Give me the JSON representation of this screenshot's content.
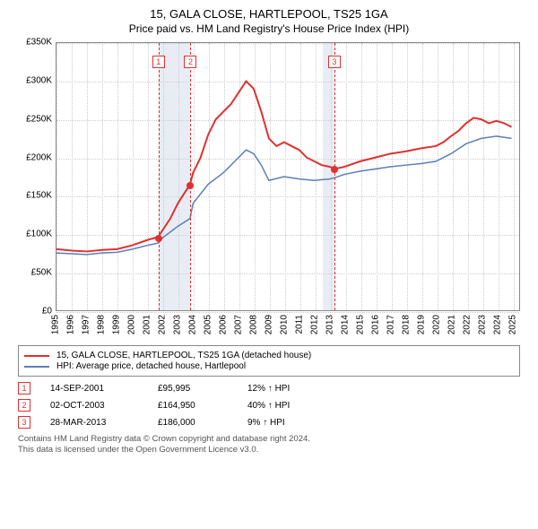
{
  "title": "15, GALA CLOSE, HARTLEPOOL, TS25 1GA",
  "subtitle": "Price paid vs. HM Land Registry's House Price Index (HPI)",
  "chart": {
    "type": "line",
    "ylim": [
      0,
      350000
    ],
    "ytick_step": 50000,
    "yticks": [
      "£0",
      "£50K",
      "£100K",
      "£150K",
      "£200K",
      "£250K",
      "£300K",
      "£350K"
    ],
    "xlim": [
      1995,
      2025.5
    ],
    "xticks": [
      1995,
      1996,
      1997,
      1998,
      1999,
      2000,
      2001,
      2002,
      2003,
      2004,
      2005,
      2006,
      2007,
      2008,
      2009,
      2010,
      2011,
      2012,
      2013,
      2014,
      2015,
      2016,
      2017,
      2018,
      2019,
      2020,
      2021,
      2022,
      2023,
      2024,
      2025
    ],
    "grid_color": "#cccccc",
    "background_color": "#ffffff",
    "shaded_ranges": [
      {
        "from": 2001.7,
        "to": 2003.8,
        "color": "#e8edf5"
      },
      {
        "from": 2012.5,
        "to": 2013.25,
        "color": "#e8edf5"
      }
    ],
    "events": [
      {
        "num": "1",
        "x": 2001.7
      },
      {
        "num": "2",
        "x": 2003.8
      },
      {
        "num": "3",
        "x": 2013.25
      }
    ],
    "series": [
      {
        "id": "property",
        "color": "#e03030",
        "width": 2,
        "points": [
          [
            1995,
            80000
          ],
          [
            1996,
            78000
          ],
          [
            1997,
            77000
          ],
          [
            1998,
            79000
          ],
          [
            1999,
            80000
          ],
          [
            2000,
            85000
          ],
          [
            2001,
            92000
          ],
          [
            2001.7,
            95995
          ],
          [
            2002,
            105000
          ],
          [
            2002.5,
            120000
          ],
          [
            2003,
            140000
          ],
          [
            2003.8,
            164950
          ],
          [
            2004,
            180000
          ],
          [
            2004.5,
            200000
          ],
          [
            2005,
            230000
          ],
          [
            2005.5,
            250000
          ],
          [
            2006,
            260000
          ],
          [
            2006.5,
            270000
          ],
          [
            2007,
            285000
          ],
          [
            2007.5,
            300000
          ],
          [
            2008,
            290000
          ],
          [
            2008.5,
            260000
          ],
          [
            2009,
            225000
          ],
          [
            2009.5,
            215000
          ],
          [
            2010,
            220000
          ],
          [
            2010.5,
            215000
          ],
          [
            2011,
            210000
          ],
          [
            2011.5,
            200000
          ],
          [
            2012,
            195000
          ],
          [
            2012.5,
            190000
          ],
          [
            2013,
            188000
          ],
          [
            2013.25,
            186000
          ],
          [
            2013.3,
            185000
          ],
          [
            2014,
            188000
          ],
          [
            2015,
            195000
          ],
          [
            2016,
            200000
          ],
          [
            2017,
            205000
          ],
          [
            2018,
            208000
          ],
          [
            2019,
            212000
          ],
          [
            2020,
            215000
          ],
          [
            2020.5,
            220000
          ],
          [
            2021,
            228000
          ],
          [
            2021.5,
            235000
          ],
          [
            2022,
            245000
          ],
          [
            2022.5,
            252000
          ],
          [
            2023,
            250000
          ],
          [
            2023.5,
            245000
          ],
          [
            2024,
            248000
          ],
          [
            2024.5,
            245000
          ],
          [
            2025,
            240000
          ]
        ]
      },
      {
        "id": "hpi",
        "color": "#5a7fb5",
        "width": 1.5,
        "points": [
          [
            1995,
            75000
          ],
          [
            1996,
            74000
          ],
          [
            1997,
            73000
          ],
          [
            1998,
            75000
          ],
          [
            1999,
            76000
          ],
          [
            2000,
            80000
          ],
          [
            2001,
            85000
          ],
          [
            2001.7,
            88000
          ],
          [
            2002,
            95000
          ],
          [
            2003,
            110000
          ],
          [
            2003.8,
            120000
          ],
          [
            2004,
            140000
          ],
          [
            2005,
            165000
          ],
          [
            2006,
            180000
          ],
          [
            2007,
            200000
          ],
          [
            2007.5,
            210000
          ],
          [
            2008,
            205000
          ],
          [
            2008.5,
            190000
          ],
          [
            2009,
            170000
          ],
          [
            2010,
            175000
          ],
          [
            2011,
            172000
          ],
          [
            2012,
            170000
          ],
          [
            2013,
            172000
          ],
          [
            2013.25,
            173000
          ],
          [
            2014,
            178000
          ],
          [
            2015,
            182000
          ],
          [
            2016,
            185000
          ],
          [
            2017,
            188000
          ],
          [
            2018,
            190000
          ],
          [
            2019,
            192000
          ],
          [
            2020,
            195000
          ],
          [
            2021,
            205000
          ],
          [
            2022,
            218000
          ],
          [
            2023,
            225000
          ],
          [
            2024,
            228000
          ],
          [
            2025,
            225000
          ]
        ]
      }
    ],
    "sale_markers": [
      {
        "x": 2001.7,
        "y": 95995
      },
      {
        "x": 2003.8,
        "y": 164950
      },
      {
        "x": 2013.25,
        "y": 186000
      }
    ]
  },
  "legend": {
    "items": [
      {
        "color": "#e03030",
        "label": "15, GALA CLOSE, HARTLEPOOL, TS25 1GA (detached house)"
      },
      {
        "color": "#5a7fb5",
        "label": "HPI: Average price, detached house, Hartlepool"
      }
    ]
  },
  "sales": [
    {
      "num": "1",
      "date": "14-SEP-2001",
      "price": "£95,995",
      "diff": "12% ↑ HPI"
    },
    {
      "num": "2",
      "date": "02-OCT-2003",
      "price": "£164,950",
      "diff": "40% ↑ HPI"
    },
    {
      "num": "3",
      "date": "28-MAR-2013",
      "price": "£186,000",
      "diff": "9% ↑ HPI"
    }
  ],
  "footer": {
    "line1": "Contains HM Land Registry data © Crown copyright and database right 2024.",
    "line2": "This data is licensed under the Open Government Licence v3.0."
  }
}
